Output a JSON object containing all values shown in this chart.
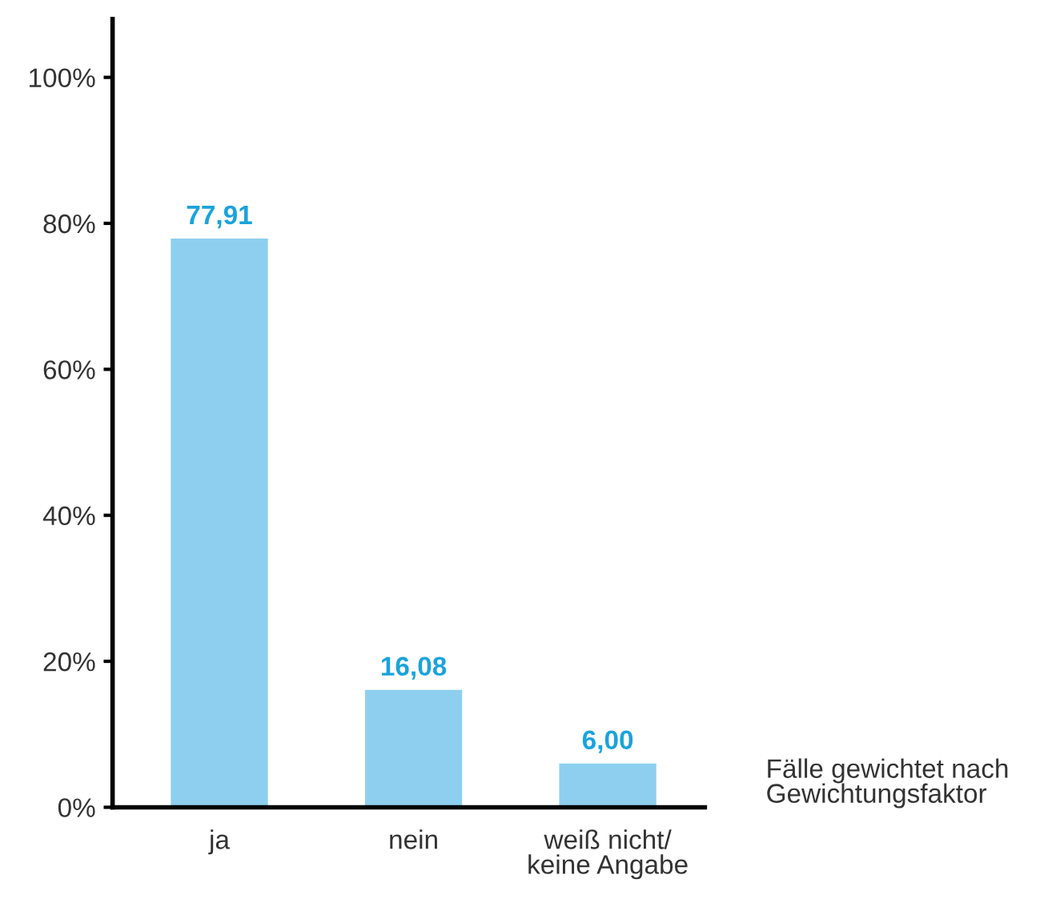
{
  "chart_data": {
    "type": "bar",
    "categories": [
      "ja",
      "nein",
      "weiß nicht/\nkeine Angabe"
    ],
    "values": [
      77.91,
      16.08,
      6.0
    ],
    "value_labels": [
      "77,91",
      "16,08",
      "6,00"
    ],
    "color": "#8ecfef",
    "ylim": [
      0,
      108
    ],
    "yticks": [
      {
        "value": 0,
        "label": "0%"
      },
      {
        "value": 20,
        "label": "20%"
      },
      {
        "value": 40,
        "label": "40%"
      },
      {
        "value": 60,
        "label": "60%"
      },
      {
        "value": 80,
        "label": "80%"
      },
      {
        "value": 100,
        "label": "100%"
      }
    ],
    "annotations": [
      "Fälle gewichtet nach\nGewichtungsfaktor"
    ],
    "grid": false,
    "legend": false
  }
}
